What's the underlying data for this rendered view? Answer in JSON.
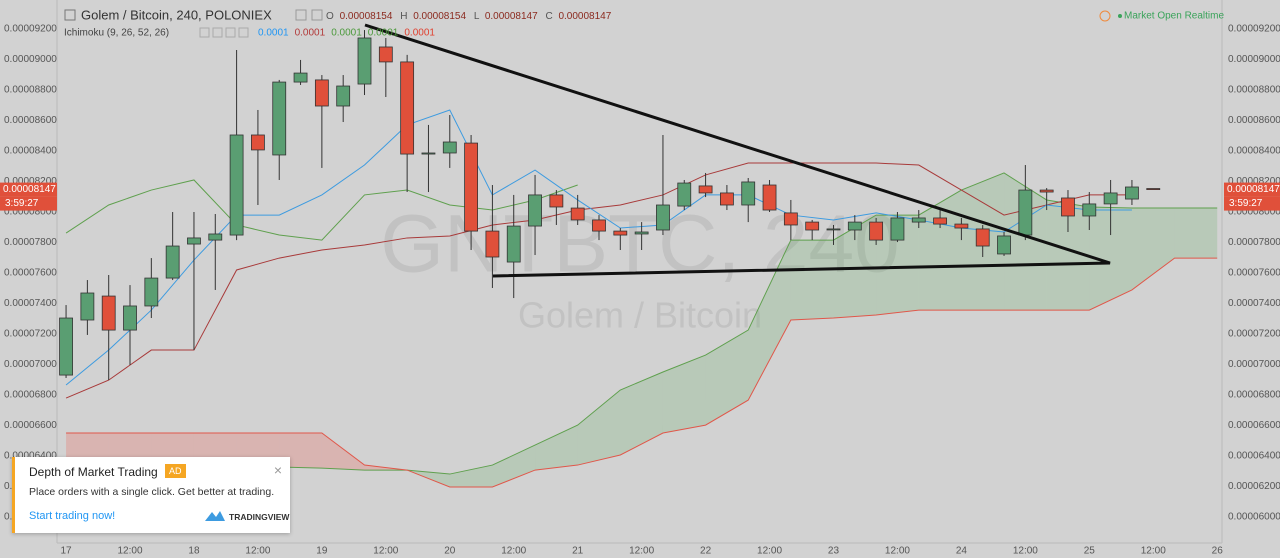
{
  "header": {
    "title": "Golem / Bitcoin, 240, POLONIEX",
    "ohlc": [
      {
        "name": "O",
        "value": 8.154e-05,
        "label": "0.00008154"
      },
      {
        "name": "H",
        "value": 8.154e-05,
        "label": "0.00008154"
      },
      {
        "name": "L",
        "value": 8.147e-05,
        "label": "0.00008147"
      },
      {
        "name": "C",
        "value": 8.147e-05,
        "label": "0.00008147"
      }
    ],
    "indicator": {
      "name": "Ichimoku (9, 26, 52, 26)",
      "values": [
        {
          "label": "0.0001",
          "color": "#2196f3"
        },
        {
          "label": "0.0001",
          "color": "#b23a3a"
        },
        {
          "label": "0.0001",
          "color": "#4c9a3c"
        },
        {
          "label": "0.0001",
          "color": "#4c9a3c"
        },
        {
          "label": "0.0001",
          "color": "#e0402f"
        }
      ]
    },
    "market_status": "Market Open Realtime"
  },
  "chart_data": {
    "type": "candlestick",
    "watermark": {
      "symbol": "GNTBTC, 240",
      "description": "Golem / Bitcoin"
    },
    "xlim": [
      -1.7,
      216.9
    ],
    "xticks": [
      {
        "value": 0,
        "label": "17"
      },
      {
        "value": 12,
        "label": "12:00"
      },
      {
        "value": 24,
        "label": "18"
      },
      {
        "value": 36,
        "label": "12:00"
      },
      {
        "value": 48,
        "label": "19"
      },
      {
        "value": 60,
        "label": "12:00"
      },
      {
        "value": 72,
        "label": "20"
      },
      {
        "value": 84,
        "label": "12:00"
      },
      {
        "value": 96,
        "label": "21"
      },
      {
        "value": 108,
        "label": "12:00"
      },
      {
        "value": 120,
        "label": "22"
      },
      {
        "value": 132,
        "label": "12:00"
      },
      {
        "value": 144,
        "label": "23"
      },
      {
        "value": 156,
        "label": "12:00"
      },
      {
        "value": 168,
        "label": "24"
      },
      {
        "value": 180,
        "label": "12:00"
      },
      {
        "value": 192,
        "label": "25"
      },
      {
        "value": 204,
        "label": "12:00"
      },
      {
        "value": 216,
        "label": "26"
      }
    ],
    "ylim": [
      5.83e-05,
      9.39e-05
    ],
    "yticks": [
      {
        "value": 6e-05,
        "label": "0.00006000"
      },
      {
        "value": 6.2e-05,
        "label": "0.00006200"
      },
      {
        "value": 6.4e-05,
        "label": "0.00006400"
      },
      {
        "value": 6.6e-05,
        "label": "0.00006600"
      },
      {
        "value": 6.8e-05,
        "label": "0.00006800"
      },
      {
        "value": 7e-05,
        "label": "0.00007000"
      },
      {
        "value": 7.2e-05,
        "label": "0.00007200"
      },
      {
        "value": 7.4e-05,
        "label": "0.00007400"
      },
      {
        "value": 7.6e-05,
        "label": "0.00007600"
      },
      {
        "value": 7.8e-05,
        "label": "0.00007800"
      },
      {
        "value": 8e-05,
        "label": "0.00008000"
      },
      {
        "value": 8.2e-05,
        "label": "0.00008200"
      },
      {
        "value": 8.4e-05,
        "label": "0.00008400"
      },
      {
        "value": 8.6e-05,
        "label": "0.00008600"
      },
      {
        "value": 8.8e-05,
        "label": "0.00008800"
      },
      {
        "value": 9e-05,
        "label": "0.00009000"
      },
      {
        "value": 9.2e-05,
        "label": "0.00009200"
      }
    ],
    "grid": true,
    "up_color": "#5a9e72",
    "down_color": "#e0503a",
    "candles": {
      "x": [
        0,
        4,
        8,
        12,
        16,
        20,
        24,
        28,
        32,
        36,
        40,
        44,
        48,
        52,
        56,
        60,
        64,
        68,
        72,
        76,
        80,
        84,
        88,
        92,
        96,
        100,
        104,
        108,
        112,
        116,
        120,
        124,
        128,
        132,
        136,
        140,
        144,
        148,
        152,
        156,
        160,
        164,
        168,
        172,
        176,
        180,
        184,
        188,
        192,
        196,
        200,
        204
      ],
      "open": [
        6.931e-05,
        7.292e-05,
        7.449e-05,
        7.226e-05,
        7.384e-05,
        7.567e-05,
        7.79e-05,
        7.816e-05,
        7.849e-05,
        8.505e-05,
        8.374e-05,
        8.852e-05,
        8.866e-05,
        8.695e-05,
        8.839e-05,
        9.082e-05,
        8.984e-05,
        8.38e-05,
        8.387e-05,
        8.452e-05,
        7.875e-05,
        7.672e-05,
        7.908e-05,
        8.112e-05,
        8.026e-05,
        7.948e-05,
        7.875e-05,
        7.856e-05,
        7.882e-05,
        8.039e-05,
        8.171e-05,
        8.125e-05,
        8.046e-05,
        8.177e-05,
        7.994e-05,
        7.934e-05,
        7.889e-05,
        7.882e-05,
        7.934e-05,
        7.816e-05,
        7.934e-05,
        7.961e-05,
        7.921e-05,
        7.889e-05,
        7.725e-05,
        7.849e-05,
        8.144e-05,
        8.092e-05,
        7.974e-05,
        8.053e-05,
        8.085e-05,
        8.154e-05
      ],
      "high": [
        7.39e-05,
        7.554e-05,
        7.587e-05,
        7.521e-05,
        7.698e-05,
        8e-05,
        8e-05,
        7.987e-05,
        9.062e-05,
        8.669e-05,
        8.866e-05,
        8.997e-05,
        8.898e-05,
        8.898e-05,
        9.193e-05,
        9.141e-05,
        9.03e-05,
        8.571e-05,
        8.636e-05,
        8.505e-05,
        8.177e-05,
        8.112e-05,
        8.243e-05,
        8.144e-05,
        8.112e-05,
        7.98e-05,
        7.895e-05,
        7.934e-05,
        8.505e-05,
        8.21e-05,
        8.256e-05,
        8.177e-05,
        8.223e-05,
        8.21e-05,
        8.079e-05,
        7.948e-05,
        7.915e-05,
        7.98e-05,
        7.961e-05,
        8e-05,
        8.013e-05,
        8.013e-05,
        7.961e-05,
        7.915e-05,
        7.869e-05,
        8.308e-05,
        8.157e-05,
        8.144e-05,
        8.131e-05,
        8.21e-05,
        8.21e-05,
        8.154e-05
      ],
      "low": [
        6.912e-05,
        7.194e-05,
        6.898e-05,
        6.997e-05,
        7.305e-05,
        7.554e-05,
        7.095e-05,
        7.489e-05,
        7.816e-05,
        8.046e-05,
        8.21e-05,
        8.833e-05,
        8.289e-05,
        8.59e-05,
        8.767e-05,
        8.754e-05,
        8.131e-05,
        8.131e-05,
        8.289e-05,
        7.751e-05,
        7.502e-05,
        7.436e-05,
        7.718e-05,
        7.915e-05,
        7.915e-05,
        7.816e-05,
        7.751e-05,
        7.751e-05,
        7.849e-05,
        8.013e-05,
        8.098e-05,
        8.013e-05,
        7.934e-05,
        8e-05,
        7.816e-05,
        7.816e-05,
        7.784e-05,
        7.816e-05,
        7.784e-05,
        7.803e-05,
        7.895e-05,
        7.895e-05,
        7.816e-05,
        7.705e-05,
        7.712e-05,
        7.816e-05,
        8.013e-05,
        7.869e-05,
        7.882e-05,
        7.849e-05,
        8.046e-05,
        8.147e-05
      ],
      "close": [
        7.305e-05,
        7.469e-05,
        7.226e-05,
        7.384e-05,
        7.567e-05,
        7.777e-05,
        7.83e-05,
        7.856e-05,
        8.505e-05,
        8.407e-05,
        8.852e-05,
        8.911e-05,
        8.695e-05,
        8.826e-05,
        9.141e-05,
        8.984e-05,
        8.38e-05,
        8.387e-05,
        8.459e-05,
        7.875e-05,
        7.705e-05,
        7.908e-05,
        8.112e-05,
        8.033e-05,
        7.948e-05,
        7.875e-05,
        7.849e-05,
        7.869e-05,
        8.046e-05,
        8.19e-05,
        8.125e-05,
        8.046e-05,
        8.197e-05,
        8.013e-05,
        7.915e-05,
        7.882e-05,
        7.889e-05,
        7.934e-05,
        7.816e-05,
        7.961e-05,
        7.961e-05,
        7.921e-05,
        7.895e-05,
        7.777e-05,
        7.843e-05,
        8.144e-05,
        8.131e-05,
        7.974e-05,
        8.053e-05,
        8.125e-05,
        8.164e-05,
        8.147e-05
      ]
    },
    "ichimoku": {
      "tenkan": {
        "color": "#3d9be0",
        "x": [
          0,
          8,
          16,
          24,
          32,
          40,
          48,
          56,
          64,
          72,
          80,
          88,
          96,
          104,
          112,
          120,
          128,
          136,
          144,
          152,
          160,
          168,
          176,
          184,
          192,
          200
        ],
        "values": [
          6.866e-05,
          7.095e-05,
          7.357e-05,
          7.685e-05,
          7.98e-05,
          7.98e-05,
          8.112e-05,
          8.308e-05,
          8.571e-05,
          8.669e-05,
          8.112e-05,
          8.275e-05,
          8.079e-05,
          7.895e-05,
          7.915e-05,
          8.112e-05,
          8.112e-05,
          7.98e-05,
          7.948e-05,
          7.994e-05,
          7.948e-05,
          7.895e-05,
          7.869e-05,
          8.046e-05,
          8.013e-05,
          8.013e-05
        ]
      },
      "kijun": {
        "color": "#a83a3a",
        "x": [
          0,
          8,
          16,
          24,
          32,
          40,
          48,
          56,
          64,
          72,
          80,
          88,
          96,
          104,
          112,
          120,
          128,
          136,
          144,
          152,
          160,
          168,
          176,
          184,
          192,
          200
        ],
        "values": [
          6.78e-05,
          6.898e-05,
          7.095e-05,
          7.095e-05,
          7.62e-05,
          7.698e-05,
          7.751e-05,
          7.784e-05,
          7.83e-05,
          7.843e-05,
          7.915e-05,
          7.948e-05,
          8.013e-05,
          8.046e-05,
          8.112e-05,
          8.243e-05,
          8.321e-05,
          8.321e-05,
          8.321e-05,
          8.321e-05,
          8.308e-05,
          8.144e-05,
          7.98e-05,
          8.046e-05,
          8.112e-05,
          8.112e-05
        ]
      },
      "chikou": {
        "color": "#5fa04e",
        "x": [
          0,
          8,
          16,
          24,
          32,
          40,
          48,
          56,
          64,
          72,
          80,
          88,
          96
        ],
        "values": [
          7.862e-05,
          8.046e-05,
          8.144e-05,
          8.21e-05,
          7.915e-05,
          7.849e-05,
          7.816e-05,
          8.112e-05,
          8.144e-05,
          8.046e-05,
          8.013e-05,
          8.079e-05,
          8.177e-05
        ]
      },
      "span_a": {
        "color": "#5fa04e",
        "x": [
          0,
          8,
          16,
          24,
          32,
          40,
          48,
          56,
          64,
          72,
          80,
          88,
          96,
          104,
          112,
          120,
          128,
          136,
          144,
          152,
          160,
          168,
          176,
          184,
          192,
          200,
          208,
          216
        ],
        "values": [
          6.341e-05,
          6.341e-05,
          6.335e-05,
          6.335e-05,
          6.328e-05,
          6.328e-05,
          6.321e-05,
          6.308e-05,
          6.308e-05,
          6.282e-05,
          6.341e-05,
          6.472e-05,
          6.603e-05,
          6.833e-05,
          6.951e-05,
          7.062e-05,
          7.226e-05,
          7.816e-05,
          7.816e-05,
          7.98e-05,
          7.98e-05,
          8.144e-05,
          8.256e-05,
          8.079e-05,
          8.033e-05,
          8.026e-05,
          8.026e-05,
          8.026e-05
        ]
      },
      "span_b": {
        "color": "#e0574a",
        "x": [
          0,
          8,
          16,
          24,
          32,
          40,
          48,
          56,
          64,
          72,
          80,
          88,
          96,
          104,
          112,
          120,
          128,
          136,
          144,
          152,
          160,
          168,
          176,
          184,
          192,
          200,
          208,
          216
        ],
        "values": [
          6.551e-05,
          6.551e-05,
          6.551e-05,
          6.551e-05,
          6.551e-05,
          6.551e-05,
          6.551e-05,
          6.341e-05,
          6.308e-05,
          6.197e-05,
          6.197e-05,
          6.308e-05,
          6.341e-05,
          6.407e-05,
          6.551e-05,
          6.603e-05,
          6.767e-05,
          7.292e-05,
          7.305e-05,
          7.325e-05,
          7.357e-05,
          7.357e-05,
          7.357e-05,
          7.357e-05,
          7.357e-05,
          7.489e-05,
          7.698e-05,
          7.698e-05
        ]
      },
      "cloud_up_color": "rgba(90,170,90,0.22)",
      "cloud_down_color": "rgba(240,90,80,0.25)"
    },
    "last_price": {
      "value": 8.147e-05,
      "label": "0.00008147",
      "color": "#e0503a"
    },
    "countdown": "3:59:27"
  },
  "ad": {
    "title": "Depth of Market Trading",
    "badge": "AD",
    "text": "Place orders with a single click. Get better at trading.",
    "link": "Start trading now!",
    "brand": "TRADINGVIEW",
    "close": "×"
  }
}
